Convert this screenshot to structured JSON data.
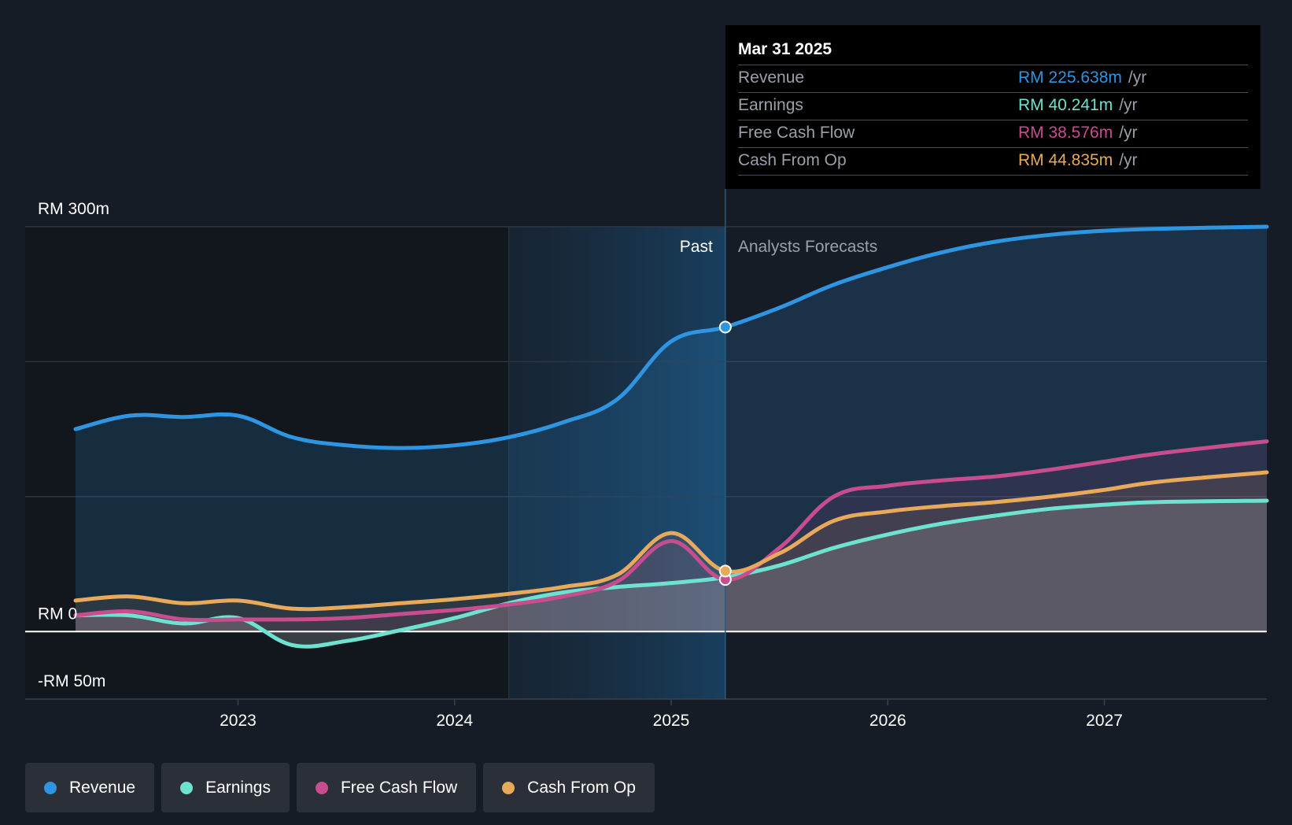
{
  "chart_data": {
    "type": "area",
    "title": "",
    "xlabel": "",
    "ylabel": "",
    "ylim": [
      -50,
      300
    ],
    "y_ticks": [
      {
        "value": 300,
        "label": "RM 300m"
      },
      {
        "value": 0,
        "label": "RM 0"
      },
      {
        "value": -50,
        "label": "-RM 50m"
      }
    ],
    "x_range": [
      2022.25,
      2027.75
    ],
    "x_ticks": [
      {
        "value": 2023,
        "label": "2023"
      },
      {
        "value": 2024,
        "label": "2024"
      },
      {
        "value": 2025,
        "label": "2025"
      },
      {
        "value": 2026,
        "label": "2026"
      },
      {
        "value": 2027,
        "label": "2027"
      }
    ],
    "past_shade_start": 2024.25,
    "divider_x": 2025.25,
    "past_label": "Past",
    "forecast_label": "Analysts Forecasts",
    "series": [
      {
        "name": "Revenue",
        "color": "#2e95e2",
        "points": [
          [
            2022.25,
            150
          ],
          [
            2022.5,
            160
          ],
          [
            2022.75,
            159
          ],
          [
            2023.0,
            160
          ],
          [
            2023.25,
            144
          ],
          [
            2023.5,
            138
          ],
          [
            2023.75,
            136
          ],
          [
            2024.0,
            138
          ],
          [
            2024.25,
            144
          ],
          [
            2024.5,
            155
          ],
          [
            2024.75,
            172
          ],
          [
            2025.0,
            215
          ],
          [
            2025.25,
            225.638
          ],
          [
            2025.5,
            240
          ],
          [
            2025.75,
            257
          ],
          [
            2026.0,
            270
          ],
          [
            2026.25,
            281
          ],
          [
            2026.5,
            289
          ],
          [
            2026.75,
            294
          ],
          [
            2027.0,
            297
          ],
          [
            2027.25,
            298.5
          ],
          [
            2027.75,
            300
          ]
        ]
      },
      {
        "name": "Earnings",
        "color": "#6ee2d0",
        "points": [
          [
            2022.25,
            12
          ],
          [
            2022.5,
            12
          ],
          [
            2022.75,
            6
          ],
          [
            2023.0,
            10
          ],
          [
            2023.25,
            -10
          ],
          [
            2023.5,
            -7
          ],
          [
            2023.75,
            1
          ],
          [
            2024.0,
            10
          ],
          [
            2024.25,
            21
          ],
          [
            2024.5,
            29
          ],
          [
            2024.75,
            33
          ],
          [
            2025.0,
            36
          ],
          [
            2025.25,
            40.241
          ],
          [
            2025.5,
            49
          ],
          [
            2025.75,
            62
          ],
          [
            2026.0,
            72
          ],
          [
            2026.25,
            80
          ],
          [
            2026.5,
            86
          ],
          [
            2026.75,
            91
          ],
          [
            2027.0,
            94
          ],
          [
            2027.25,
            96
          ],
          [
            2027.75,
            97
          ]
        ]
      },
      {
        "name": "Free Cash Flow",
        "color": "#c74d8f",
        "points": [
          [
            2022.25,
            12
          ],
          [
            2022.5,
            15
          ],
          [
            2022.75,
            9
          ],
          [
            2023.0,
            9
          ],
          [
            2023.25,
            9
          ],
          [
            2023.5,
            10
          ],
          [
            2023.75,
            13
          ],
          [
            2024.0,
            16
          ],
          [
            2024.25,
            20
          ],
          [
            2024.5,
            26
          ],
          [
            2024.75,
            37
          ],
          [
            2025.0,
            67
          ],
          [
            2025.25,
            38.576
          ],
          [
            2025.5,
            62
          ],
          [
            2025.75,
            100
          ],
          [
            2026.0,
            108
          ],
          [
            2026.25,
            112
          ],
          [
            2026.5,
            115
          ],
          [
            2026.75,
            120
          ],
          [
            2027.0,
            126
          ],
          [
            2027.25,
            132
          ],
          [
            2027.75,
            141
          ]
        ]
      },
      {
        "name": "Cash From Op",
        "color": "#e8a95a",
        "points": [
          [
            2022.25,
            23
          ],
          [
            2022.5,
            26
          ],
          [
            2022.75,
            21
          ],
          [
            2023.0,
            23
          ],
          [
            2023.25,
            17
          ],
          [
            2023.5,
            18
          ],
          [
            2023.75,
            21
          ],
          [
            2024.0,
            24
          ],
          [
            2024.25,
            28
          ],
          [
            2024.5,
            33
          ],
          [
            2024.75,
            42
          ],
          [
            2025.0,
            73
          ],
          [
            2025.25,
            44.835
          ],
          [
            2025.5,
            58
          ],
          [
            2025.75,
            82
          ],
          [
            2026.0,
            89
          ],
          [
            2026.25,
            93
          ],
          [
            2026.5,
            96
          ],
          [
            2026.75,
            100
          ],
          [
            2027.0,
            105
          ],
          [
            2027.25,
            111
          ],
          [
            2027.75,
            118
          ]
        ]
      }
    ],
    "tooltip": {
      "date": "Mar 31 2025",
      "unit": "/yr",
      "rows": [
        {
          "name": "Revenue",
          "value": "RM 225.638m",
          "color": "#2e95e2"
        },
        {
          "name": "Earnings",
          "value": "RM 40.241m",
          "color": "#6ee2d0"
        },
        {
          "name": "Free Cash Flow",
          "value": "RM 38.576m",
          "color": "#c74d8f"
        },
        {
          "name": "Cash From Op",
          "value": "RM 44.835m",
          "color": "#e8a95a"
        }
      ]
    }
  },
  "legend": {
    "items": [
      {
        "label": "Revenue",
        "color": "#2e95e2"
      },
      {
        "label": "Earnings",
        "color": "#6ee2d0"
      },
      {
        "label": "Free Cash Flow",
        "color": "#c74d8f"
      },
      {
        "label": "Cash From Op",
        "color": "#e8a95a"
      }
    ]
  }
}
